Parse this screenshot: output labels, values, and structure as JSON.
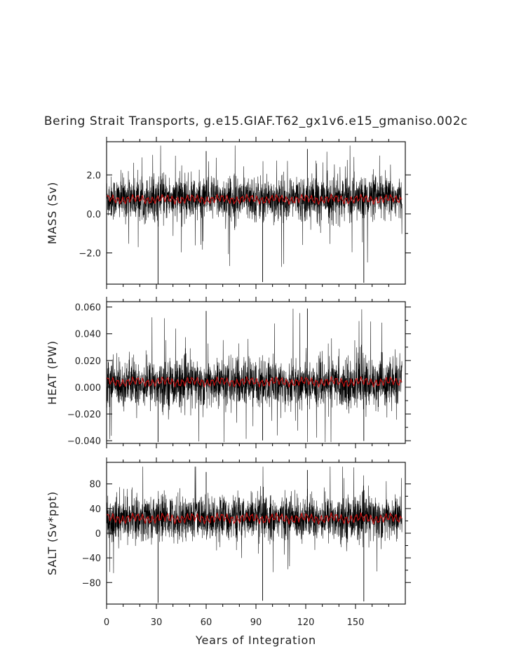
{
  "title": "Bering Strait Transports, g.e15.GIAF.T62_gx1v6.e15_gmaniso.002c",
  "xlabel": "Years of Integration",
  "colors": {
    "raw": "#000000",
    "smooth": "#cc1111"
  },
  "chart_data": [
    {
      "type": "line",
      "ylabel": "MASS (Sv)",
      "xlim": [
        0,
        180
      ],
      "ylim": [
        -3.6,
        3.7
      ],
      "yticks": [
        2.0,
        0.0,
        -2.0
      ],
      "ytick_labels": [
        "2.0",
        "0.0",
        "−2.0"
      ],
      "series": [
        {
          "role": "monthly",
          "mean": 0.8,
          "spread": 0.55,
          "min_spike": -3.6,
          "max_spike": 3.5
        },
        {
          "role": "smoothed",
          "mean": 0.75,
          "amplitude": 0.2
        }
      ]
    },
    {
      "type": "line",
      "ylabel": "HEAT (PW)",
      "xlim": [
        0,
        180
      ],
      "ylim": [
        -0.042,
        0.064
      ],
      "yticks": [
        0.06,
        0.04,
        0.02,
        0.0,
        -0.02,
        -0.04
      ],
      "ytick_labels": [
        "0.060",
        "0.040",
        "0.020",
        "0.000",
        "−0.020",
        "−0.040"
      ],
      "series": [
        {
          "role": "monthly",
          "mean": 0.003,
          "spread": 0.009,
          "min_spike": -0.041,
          "max_spike": 0.062
        },
        {
          "role": "smoothed",
          "mean": 0.004,
          "amplitude": 0.003
        }
      ]
    },
    {
      "type": "line",
      "ylabel": "SALT (Sv*ppt)",
      "xlim": [
        0,
        180
      ],
      "ylim": [
        -115,
        115
      ],
      "yticks": [
        80,
        40,
        0,
        -40,
        -80
      ],
      "ytick_labels": [
        "80",
        "40",
        "0",
        "−40",
        "−80"
      ],
      "series": [
        {
          "role": "monthly",
          "mean": 25,
          "spread": 18,
          "min_spike": -113,
          "max_spike": 108
        },
        {
          "role": "smoothed",
          "mean": 24,
          "amplitude": 7
        }
      ]
    }
  ],
  "xticks": [
    0,
    30,
    60,
    90,
    120,
    150
  ],
  "xtick_labels": [
    "0",
    "30",
    "60",
    "90",
    "120",
    "150"
  ]
}
